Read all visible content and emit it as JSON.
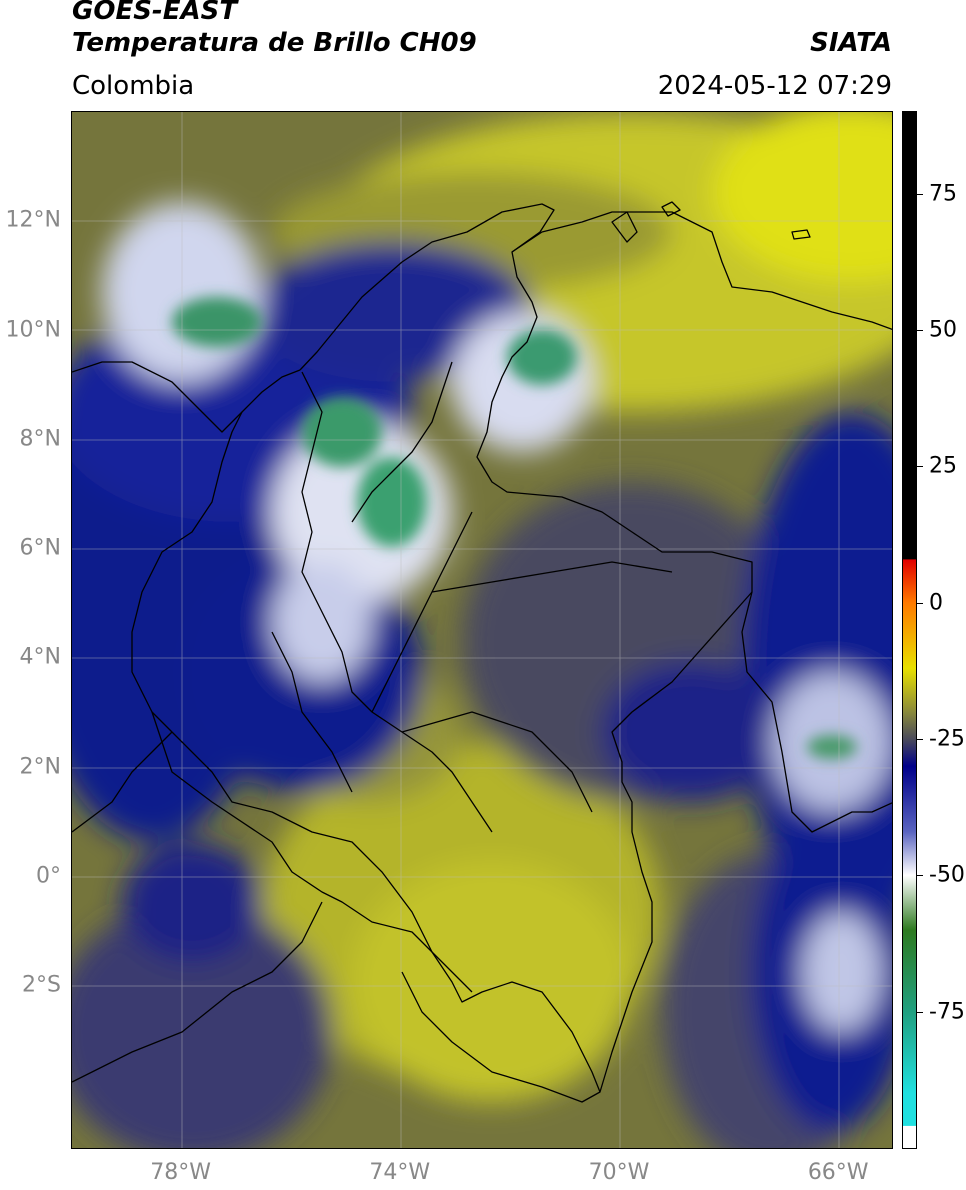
{
  "header": {
    "satellite": "GOES-EAST",
    "product": "Temperatura de Brillo CH09",
    "agency": "SIATA",
    "region": "Colombia",
    "datetime": "2024-05-12 07:29"
  },
  "map": {
    "lon_range": [
      -80,
      -65
    ],
    "lat_range": [
      -5,
      14
    ],
    "lat_ticks": [
      {
        "value": 12,
        "label": "12°N"
      },
      {
        "value": 10,
        "label": "10°N"
      },
      {
        "value": 8,
        "label": "8°N"
      },
      {
        "value": 6,
        "label": "6°N"
      },
      {
        "value": 4,
        "label": "4°N"
      },
      {
        "value": 2,
        "label": "2°N"
      },
      {
        "value": 0,
        "label": "0°"
      },
      {
        "value": -2,
        "label": "2°S"
      }
    ],
    "lon_ticks": [
      {
        "value": -78,
        "label": "78°W"
      },
      {
        "value": -74,
        "label": "74°W"
      },
      {
        "value": -70,
        "label": "70°W"
      },
      {
        "value": -66,
        "label": "66°W"
      }
    ],
    "gridlines": true,
    "colors": {
      "background_field": "#7f7f3a",
      "warm": "#c8c82a",
      "mid": "#5a5a6a",
      "cold": "#101a8a",
      "very_cold": "#e8ecf6",
      "coldest": "#3aa070",
      "coast": "#000000"
    }
  },
  "colorbar": {
    "range": [
      -100,
      90
    ],
    "ticks": [
      {
        "value": 75,
        "label": "75"
      },
      {
        "value": 50,
        "label": "50"
      },
      {
        "value": 25,
        "label": "25"
      },
      {
        "value": 0,
        "label": "0"
      },
      {
        "value": -25,
        "label": "-25"
      },
      {
        "value": -50,
        "label": "-50"
      },
      {
        "value": -75,
        "label": "-75"
      }
    ],
    "stops": [
      {
        "value": 90,
        "color": "#000000"
      },
      {
        "value": 8,
        "color": "#000000"
      },
      {
        "value": 7.9,
        "color": "#e00000"
      },
      {
        "value": 0,
        "color": "#ff7a00"
      },
      {
        "value": -12,
        "color": "#e8e000"
      },
      {
        "value": -20,
        "color": "#8a8a3a"
      },
      {
        "value": -25,
        "color": "#4a4a5a"
      },
      {
        "value": -30,
        "color": "#00008a"
      },
      {
        "value": -42,
        "color": "#5a64c0"
      },
      {
        "value": -50,
        "color": "#ffffff"
      },
      {
        "value": -60,
        "color": "#2e7a20"
      },
      {
        "value": -75,
        "color": "#20a080"
      },
      {
        "value": -90,
        "color": "#20e0e0"
      },
      {
        "value": -95.9,
        "color": "#20e0e0"
      },
      {
        "value": -96,
        "color": "#ffffff"
      },
      {
        "value": -100,
        "color": "#ffffff"
      }
    ]
  }
}
